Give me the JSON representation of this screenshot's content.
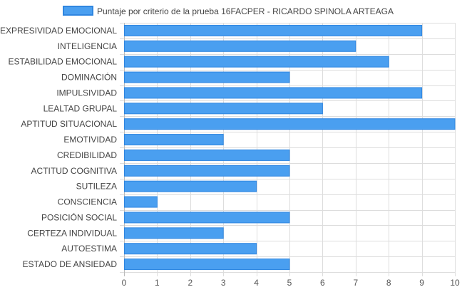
{
  "chart_data": {
    "type": "bar",
    "orientation": "horizontal",
    "legend": {
      "placement": "top-center",
      "label": "Puntaje por criterio de la prueba 16FACPER - RICARDO SPINOLA ARTEAGA"
    },
    "categories": [
      "EXPRESIVIDAD EMOCIONAL",
      "INTELIGENCIA",
      "ESTABILIDAD EMOCIONAL",
      "DOMINACIÓN",
      "IMPULSIVIDAD",
      "LEALTAD GRUPAL",
      "APTITUD SITUACIONAL",
      "EMOTIVIDAD",
      "CREDIBILIDAD",
      "ACTITUD COGNITIVA",
      "SUTILEZA",
      "CONSCIENCIA",
      "POSICIÓN SOCIAL",
      "CERTEZA INDIVIDUAL",
      "AUTOESTIMA",
      "ESTADO DE ANSIEDAD"
    ],
    "series": [
      {
        "name": "Puntaje por criterio de la prueba 16FACPER - RICARDO SPINOLA ARTEAGA",
        "values": [
          9,
          7,
          8,
          5,
          9,
          6,
          10,
          3,
          5,
          5,
          4,
          1,
          5,
          3,
          4,
          5
        ]
      }
    ],
    "xlim": [
      0,
      10
    ],
    "xticks": [
      "0",
      "1",
      "2",
      "3",
      "4",
      "5",
      "6",
      "7",
      "8",
      "9",
      "10"
    ],
    "grid": true,
    "colors": {
      "bar_fill": "#4a9ff0",
      "bar_stroke": "#2f86e0",
      "grid": "#dddddd"
    }
  }
}
